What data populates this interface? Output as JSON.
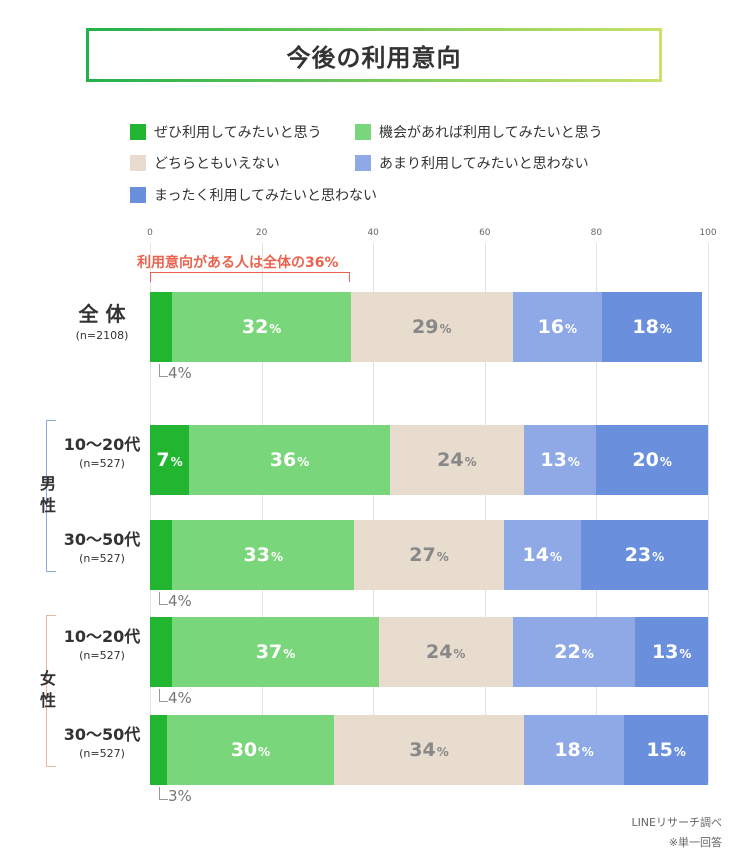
{
  "title": "今後の利用意向",
  "legend": [
    {
      "label": "ぜひ利用してみたいと思う",
      "color": "#22b630"
    },
    {
      "label": "機会があれば利用してみたいと思う",
      "color": "#7ad67a"
    },
    {
      "label": "どちらともいえない",
      "color": "#e8dccf"
    },
    {
      "label": "あまり利用してみたいと思わない",
      "color": "#8ea9e6"
    },
    {
      "label": "まったく利用してみたいと思わない",
      "color": "#6a8fdc"
    }
  ],
  "highlight_label": "利用意向がある人は全体の36%",
  "groups": {
    "male": "男性",
    "female": "女性"
  },
  "footer": {
    "source": "LINEリサーチ調べ",
    "note": "※単一回答"
  },
  "percent_unit": "%",
  "chart_data": {
    "type": "bar",
    "orientation": "horizontal",
    "stacked": true,
    "xlim": [
      0,
      100
    ],
    "x_ticks": [
      "0",
      "20",
      "40",
      "60",
      "80",
      "100"
    ],
    "categories": [
      "全 体",
      "10〜20代",
      "30〜50代",
      "10〜20代",
      "30〜50代"
    ],
    "category_n": [
      "(n=2108)",
      "(n=527)",
      "(n=527)",
      "(n=527)",
      "(n=527)"
    ],
    "category_group": [
      null,
      "male",
      "male",
      "female",
      "female"
    ],
    "series": [
      {
        "name": "ぜひ利用してみたいと思う",
        "values": [
          4,
          7,
          4,
          4,
          3
        ]
      },
      {
        "name": "機会があれば利用してみたいと思う",
        "values": [
          32,
          36,
          33,
          37,
          30
        ]
      },
      {
        "name": "どちらともいえない",
        "values": [
          29,
          24,
          27,
          24,
          34
        ]
      },
      {
        "name": "あまり利用してみたいと思わない",
        "values": [
          16,
          13,
          14,
          22,
          18
        ]
      },
      {
        "name": "まったく利用してみたいと思わない",
        "values": [
          18,
          20,
          23,
          13,
          15
        ]
      }
    ],
    "labels_outside": [
      "4%",
      null,
      "4%",
      "4%",
      "3%"
    ],
    "labels_inside": [
      [
        null,
        "32",
        "29",
        "16",
        "18"
      ],
      [
        "7",
        "36",
        "24",
        "13",
        "20"
      ],
      [
        null,
        "33",
        "27",
        "14",
        "23"
      ],
      [
        null,
        "37",
        "24",
        "22",
        "13"
      ],
      [
        null,
        "30",
        "34",
        "18",
        "15"
      ]
    ]
  }
}
